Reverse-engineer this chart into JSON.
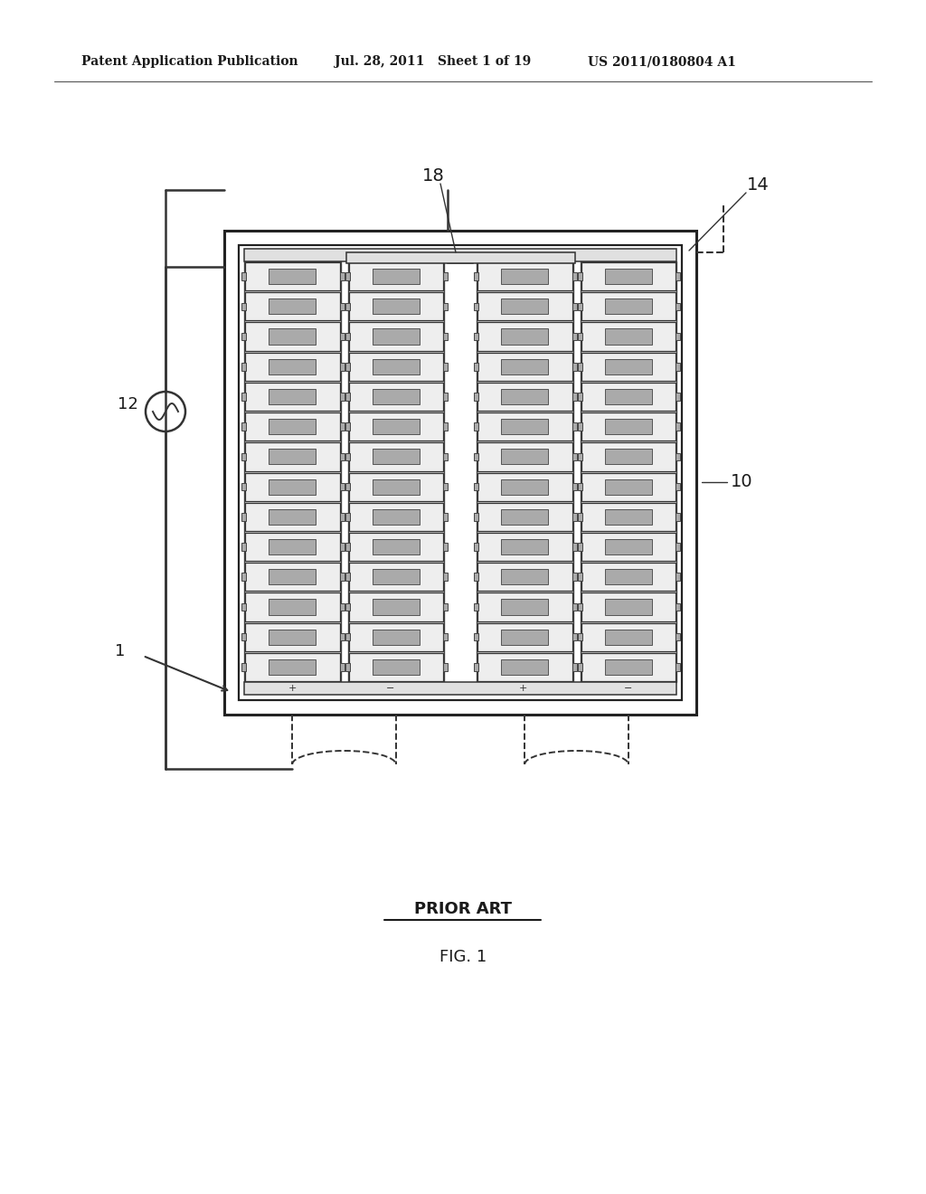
{
  "bg_color": "#ffffff",
  "header_left": "Patent Application Publication",
  "header_mid": "Jul. 28, 2011   Sheet 1 of 19",
  "header_right": "US 2011/0180804 A1",
  "fig_label": "FIG. 1",
  "prior_art_label": "PRIOR ART",
  "label_10": "10",
  "label_12": "12",
  "label_14": "14",
  "label_18": "18",
  "label_1": "1",
  "text_color": "#1a1a1a",
  "line_color": "#333333",
  "cell_fill": "#d8d8d8",
  "cell_edge": "#444444",
  "bus_fill": "#e8e8e8"
}
